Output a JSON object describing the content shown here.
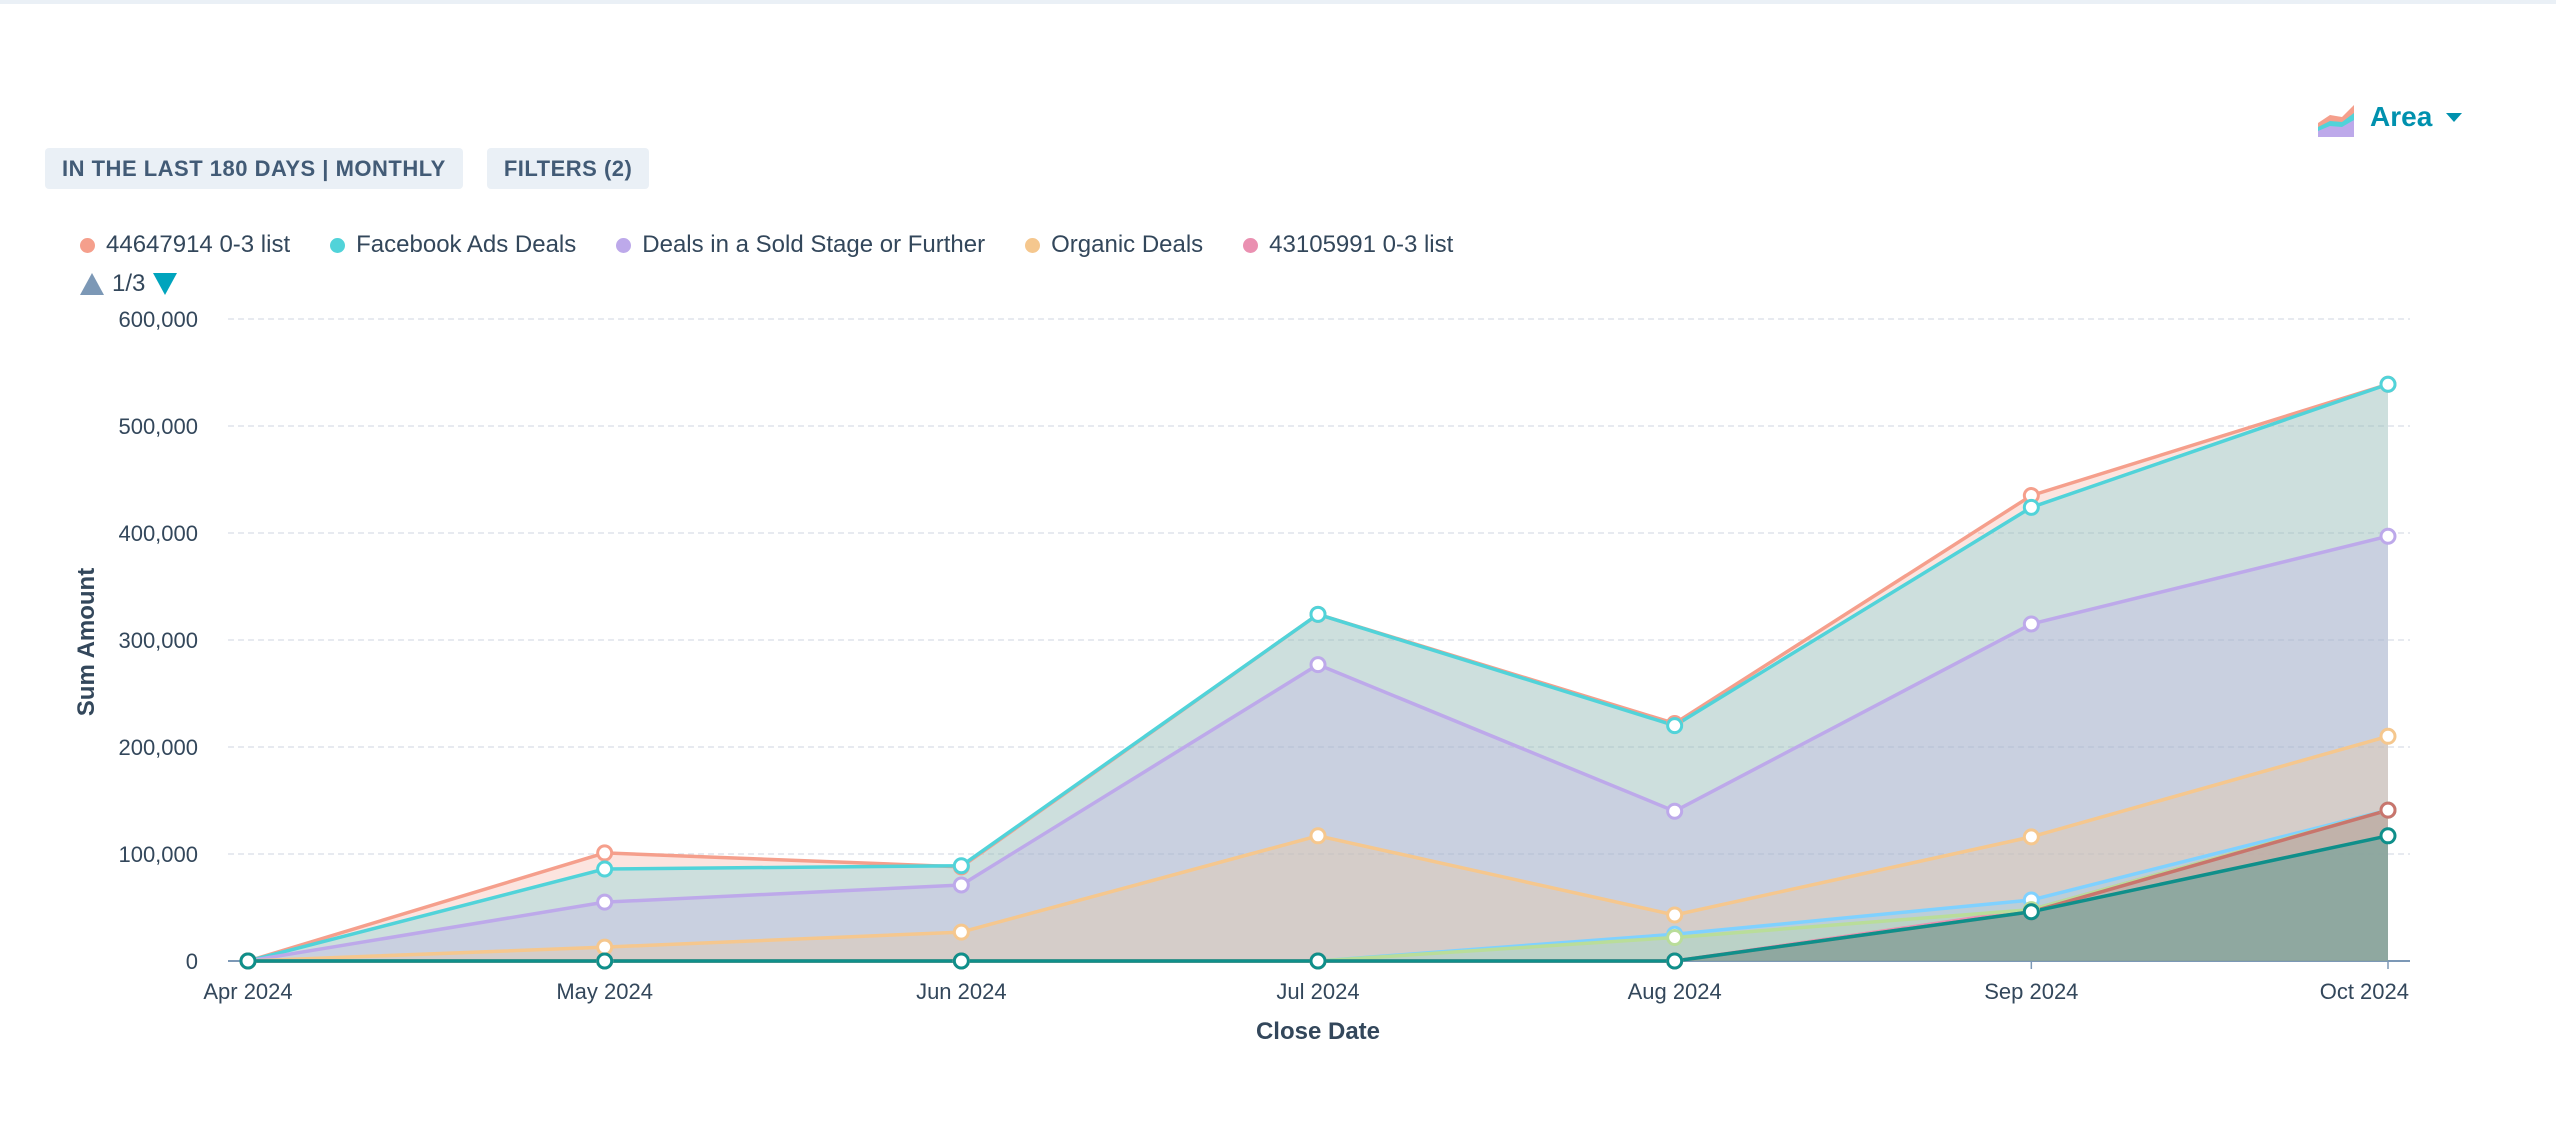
{
  "toolbar": {
    "chart_type_label": "Area",
    "chart_type_icon": "stacked-area-chart-icon"
  },
  "filters": {
    "date_range": "IN THE LAST 180 DAYS | MONTHLY",
    "filters_button": "FILTERS (2)"
  },
  "legend": {
    "items": [
      {
        "label": "44647914 0-3 list",
        "color": "#f59f8c"
      },
      {
        "label": "Facebook Ads Deals",
        "color": "#51d3d9"
      },
      {
        "label": "Deals in a Sold Stage or Further",
        "color": "#bda9ea"
      },
      {
        "label": "Organic Deals",
        "color": "#f5c78e"
      },
      {
        "label": "43105991 0-3 list",
        "color": "#ea90b1"
      }
    ],
    "page": "1/3"
  },
  "chart_data": {
    "type": "area",
    "stacked": true,
    "xlabel": "Close Date",
    "ylabel": "Sum Amount",
    "categories": [
      "Apr 2024",
      "May 2024",
      "Jun 2024",
      "Jul 2024",
      "Aug 2024",
      "Sep 2024",
      "Oct 2024"
    ],
    "ylim": [
      0,
      600000
    ],
    "yticks": [
      0,
      100000,
      200000,
      300000,
      400000,
      500000,
      600000
    ],
    "ytick_labels": [
      "0",
      "100,000",
      "200,000",
      "300,000",
      "400,000",
      "500,000",
      "600,000"
    ],
    "grid": true,
    "legend_position": "top-left",
    "stacked_totals": [
      {
        "name": "44647914 0-3 list",
        "color": "#f59f8c",
        "values": [
          0,
          101000,
          88000,
          324000,
          222000,
          435000,
          539000
        ]
      },
      {
        "name": "Facebook Ads Deals",
        "color": "#51d3d9",
        "values": [
          0,
          86000,
          89000,
          324000,
          220000,
          424000,
          539000
        ]
      },
      {
        "name": "Deals in a Sold Stage or Further",
        "color": "#bda9ea",
        "values": [
          0,
          55000,
          71000,
          277000,
          140000,
          315000,
          397000
        ]
      },
      {
        "name": "Organic Deals",
        "color": "#f5c78e",
        "values": [
          0,
          13000,
          27000,
          117000,
          43000,
          116000,
          210000
        ]
      },
      {
        "color": "#ea90b1",
        "values": [
          0,
          0,
          0,
          0,
          0,
          48000,
          141000
        ]
      },
      {
        "color": "#7fd1ff",
        "values": [
          0,
          0,
          0,
          0,
          25000,
          57000,
          141000
        ]
      },
      {
        "color": "#b9dd9a",
        "values": [
          0,
          0,
          0,
          0,
          22000,
          48000,
          141000
        ]
      },
      {
        "color": "#c8756d",
        "values": [
          0,
          0,
          0,
          0,
          0,
          46000,
          141000
        ]
      },
      {
        "color": "#0f8f8a",
        "values": [
          0,
          0,
          0,
          0,
          0,
          46000,
          117000
        ]
      }
    ]
  }
}
